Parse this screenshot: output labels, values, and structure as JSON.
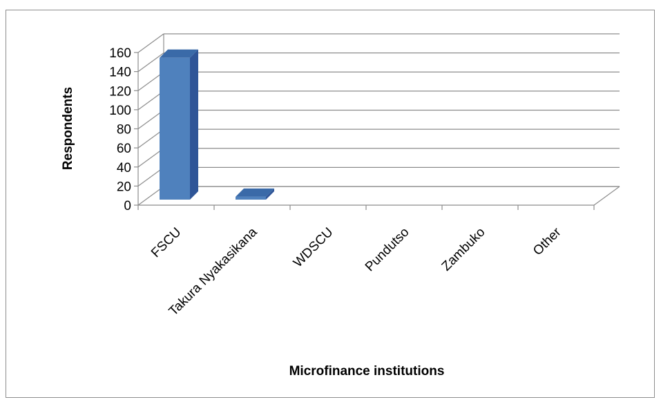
{
  "chart_data": {
    "type": "bar",
    "style": "3d-column",
    "categories": [
      "FSCU",
      "Takura Nyakasikana",
      "WDSCU",
      "Pundutso",
      "Zambuko",
      "Other"
    ],
    "values": [
      153,
      3,
      0,
      0,
      0,
      0
    ],
    "xlabel": "Microfinance institutions",
    "ylabel": "Respondents",
    "ylim": [
      0,
      160
    ],
    "yticks": [
      0,
      20,
      40,
      60,
      80,
      100,
      120,
      140,
      160
    ],
    "grid": true,
    "legend": "none",
    "colors": {
      "bar_front": "#4f81bd",
      "bar_side": "#2f5597",
      "bar_top": "#3a6aa8",
      "grid": "#8c8c8c"
    }
  }
}
